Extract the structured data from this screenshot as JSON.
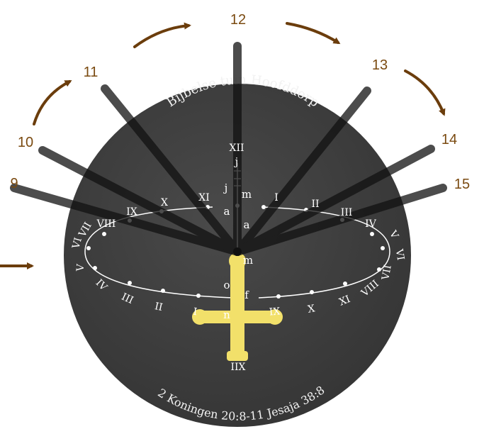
{
  "dial": {
    "top_text": "Bijbelse tuin Hoofddorp",
    "bottom_text": "2 Koningen 20:8-11  Jesaja 38:8",
    "colors": {
      "dial": "#3d3d3d",
      "gnomon": "#f2e06a",
      "arrows": "#6b3d0c",
      "numbers": "#7a4a10",
      "rays": "#111111"
    }
  },
  "hour_labels": [
    "9",
    "10",
    "11",
    "12",
    "13",
    "14",
    "15"
  ],
  "roman_top": {
    "xii": "XII",
    "left": [
      "VIII",
      "IX",
      "X",
      "XI"
    ],
    "right": [
      "I",
      "II",
      "III",
      "IV"
    ]
  },
  "roman_left": [
    "VI",
    "VII",
    "V",
    "IV",
    "III",
    "II",
    "I"
  ],
  "roman_right": [
    "V",
    "VI",
    "VII",
    "VIII",
    "IX",
    "X",
    "XI"
  ],
  "roman_bottom": [
    "IX",
    "X",
    "XI"
  ],
  "roman_bottom_center": "IIX",
  "month_labels": [
    "j",
    "j",
    "m",
    "a",
    "a",
    "m",
    "o",
    "f",
    "n"
  ]
}
